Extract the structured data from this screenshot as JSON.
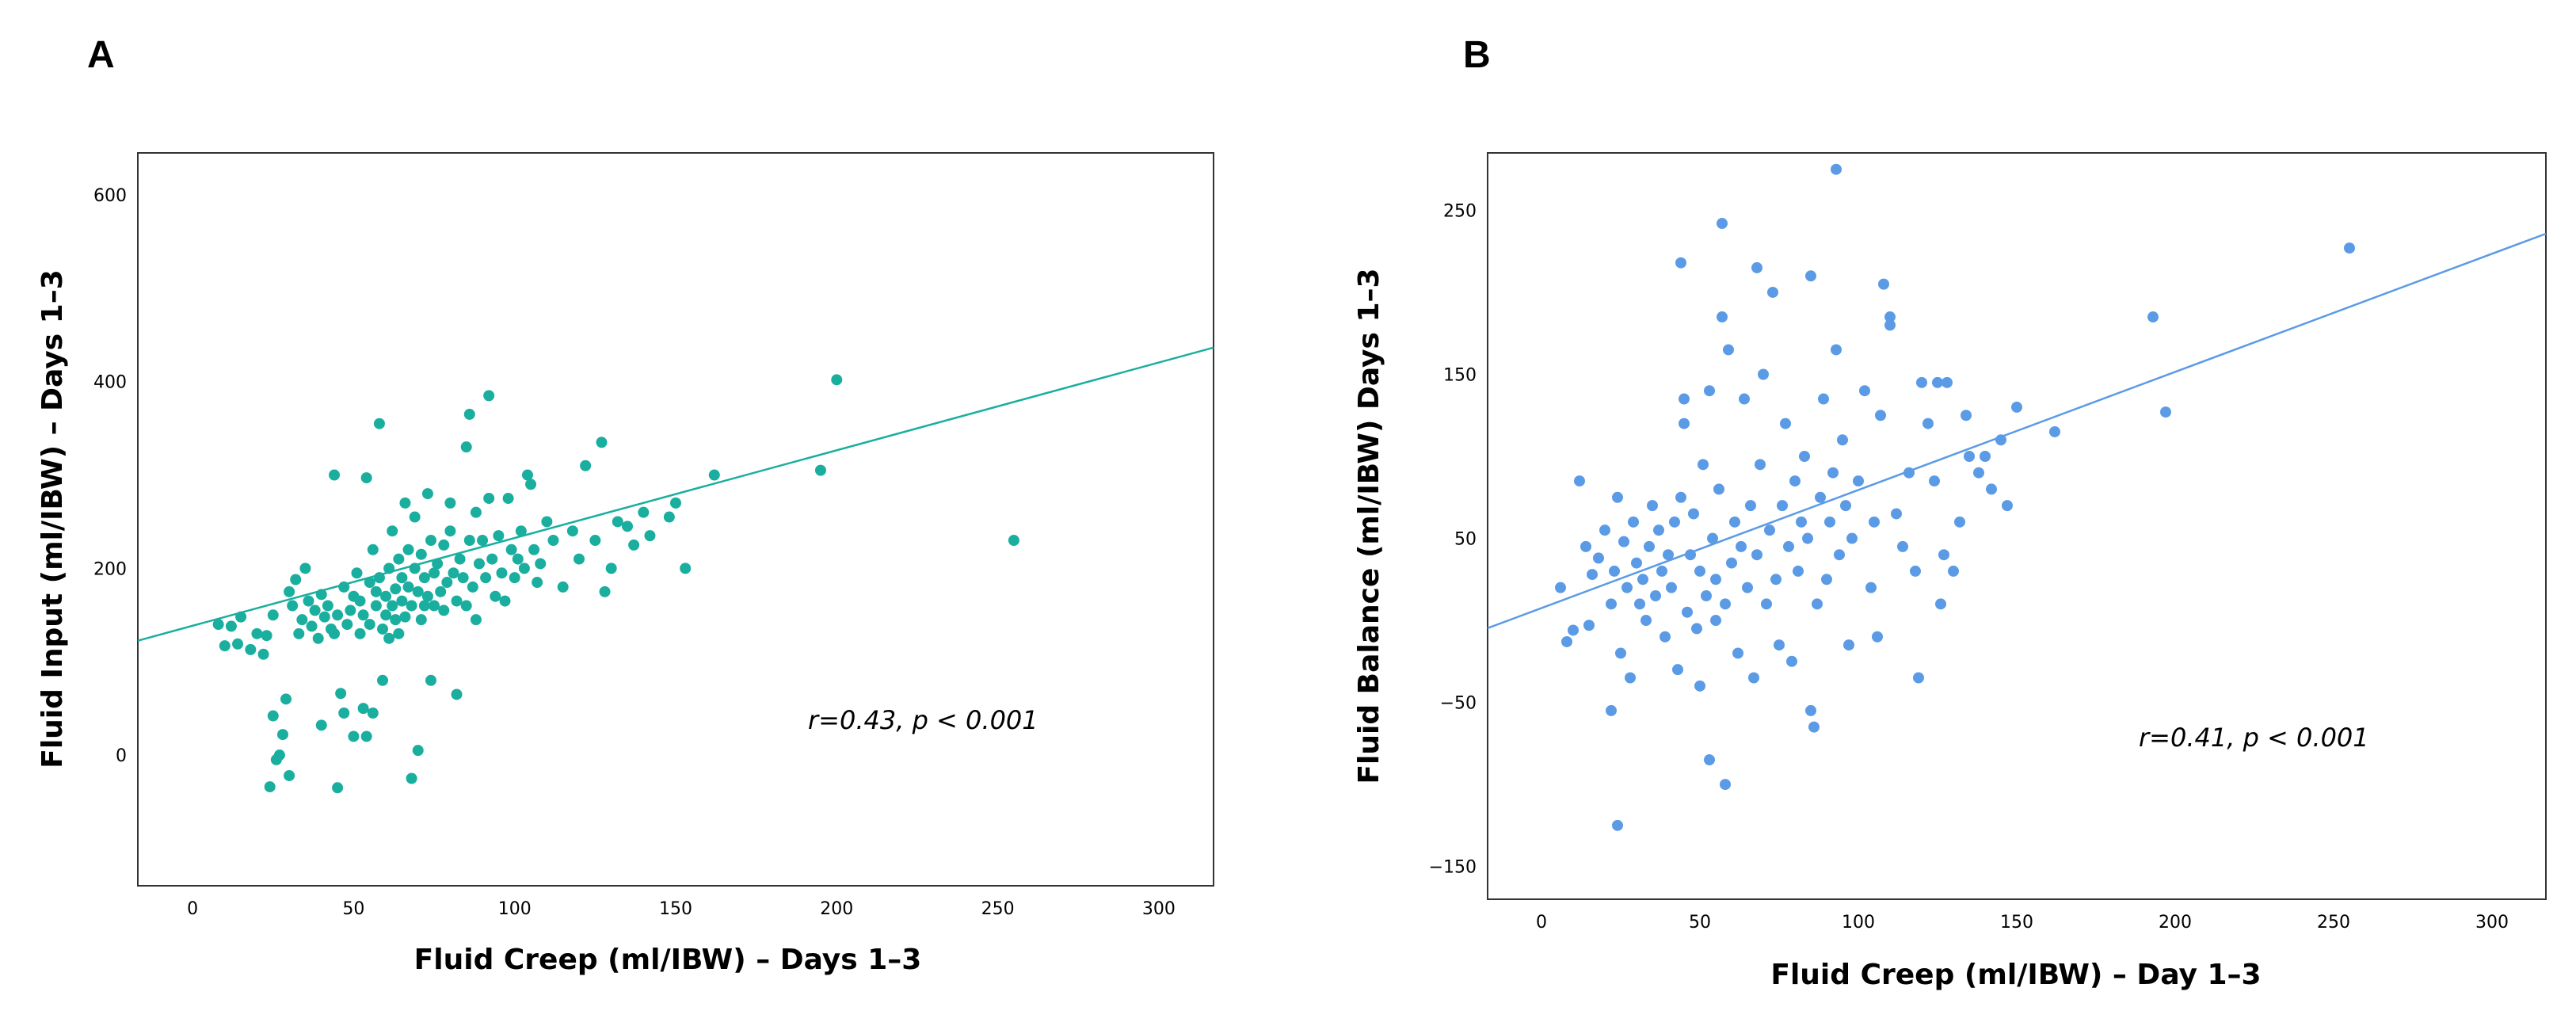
{
  "chart_data": [
    {
      "type": "scatter",
      "panel": "A",
      "xlabel": "Fluid Creep (ml/IBW) – Days 1–3",
      "ylabel": "Fluid Input (ml/IBW) – Days 1–3",
      "xlim": [
        -17,
        317
      ],
      "ylim": [
        -140,
        645
      ],
      "xticks": [
        "0",
        "50",
        "100",
        "150",
        "200",
        "250",
        "300"
      ],
      "yticks": [
        "0",
        "200",
        "400",
        "600"
      ],
      "xtick_values": [
        0,
        50,
        100,
        150,
        200,
        250,
        300
      ],
      "ytick_values": [
        0,
        200,
        400,
        600
      ],
      "annotation": "r=0.43, p < 0.001",
      "fit_line": {
        "intercept": 138.5,
        "slope": 0.94
      },
      "color": "#1aae9f",
      "points": [
        [
          8,
          140
        ],
        [
          10,
          117
        ],
        [
          12,
          138
        ],
        [
          14,
          119
        ],
        [
          15,
          148
        ],
        [
          18,
          113
        ],
        [
          20,
          130
        ],
        [
          22,
          108
        ],
        [
          23,
          128
        ],
        [
          25,
          150
        ],
        [
          24,
          -34
        ],
        [
          25,
          42
        ],
        [
          26,
          -5
        ],
        [
          27,
          0
        ],
        [
          28,
          22
        ],
        [
          29,
          60
        ],
        [
          30,
          -22
        ],
        [
          30,
          175
        ],
        [
          31,
          160
        ],
        [
          32,
          188
        ],
        [
          33,
          130
        ],
        [
          34,
          145
        ],
        [
          35,
          200
        ],
        [
          36,
          165
        ],
        [
          37,
          138
        ],
        [
          38,
          155
        ],
        [
          39,
          125
        ],
        [
          40,
          32
        ],
        [
          40,
          172
        ],
        [
          41,
          148
        ],
        [
          42,
          160
        ],
        [
          43,
          135
        ],
        [
          44,
          130
        ],
        [
          44,
          300
        ],
        [
          45,
          150
        ],
        [
          45,
          -35
        ],
        [
          46,
          66
        ],
        [
          47,
          180
        ],
        [
          47,
          45
        ],
        [
          48,
          140
        ],
        [
          49,
          155
        ],
        [
          50,
          170
        ],
        [
          50,
          20
        ],
        [
          51,
          195
        ],
        [
          52,
          165
        ],
        [
          52,
          130
        ],
        [
          53,
          150
        ],
        [
          53,
          50
        ],
        [
          54,
          297
        ],
        [
          54,
          20
        ],
        [
          55,
          185
        ],
        [
          55,
          140
        ],
        [
          56,
          220
        ],
        [
          56,
          45
        ],
        [
          57,
          160
        ],
        [
          57,
          175
        ],
        [
          58,
          190
        ],
        [
          58,
          355
        ],
        [
          59,
          135
        ],
        [
          59,
          80
        ],
        [
          60,
          170
        ],
        [
          60,
          150
        ],
        [
          61,
          200
        ],
        [
          61,
          125
        ],
        [
          62,
          160
        ],
        [
          62,
          240
        ],
        [
          63,
          178
        ],
        [
          63,
          145
        ],
        [
          64,
          210
        ],
        [
          64,
          130
        ],
        [
          65,
          190
        ],
        [
          65,
          165
        ],
        [
          66,
          270
        ],
        [
          66,
          148
        ],
        [
          67,
          220
        ],
        [
          67,
          180
        ],
        [
          68,
          160
        ],
        [
          68,
          -25
        ],
        [
          69,
          200
        ],
        [
          69,
          255
        ],
        [
          70,
          175
        ],
        [
          70,
          5
        ],
        [
          71,
          215
        ],
        [
          71,
          145
        ],
        [
          72,
          160
        ],
        [
          72,
          190
        ],
        [
          73,
          280
        ],
        [
          73,
          170
        ],
        [
          74,
          230
        ],
        [
          74,
          80
        ],
        [
          75,
          160
        ],
        [
          75,
          195
        ],
        [
          76,
          205
        ],
        [
          77,
          175
        ],
        [
          78,
          225
        ],
        [
          78,
          155
        ],
        [
          79,
          185
        ],
        [
          80,
          270
        ],
        [
          80,
          240
        ],
        [
          81,
          195
        ],
        [
          82,
          165
        ],
        [
          82,
          65
        ],
        [
          83,
          210
        ],
        [
          84,
          190
        ],
        [
          85,
          330
        ],
        [
          85,
          160
        ],
        [
          86,
          230
        ],
        [
          86,
          365
        ],
        [
          87,
          180
        ],
        [
          88,
          260
        ],
        [
          88,
          145
        ],
        [
          89,
          205
        ],
        [
          90,
          230
        ],
        [
          91,
          190
        ],
        [
          92,
          275
        ],
        [
          92,
          385
        ],
        [
          93,
          210
        ],
        [
          94,
          170
        ],
        [
          95,
          235
        ],
        [
          96,
          195
        ],
        [
          97,
          165
        ],
        [
          98,
          275
        ],
        [
          99,
          220
        ],
        [
          100,
          190
        ],
        [
          101,
          210
        ],
        [
          102,
          240
        ],
        [
          103,
          200
        ],
        [
          104,
          300
        ],
        [
          105,
          290
        ],
        [
          106,
          220
        ],
        [
          107,
          185
        ],
        [
          108,
          205
        ],
        [
          110,
          250
        ],
        [
          112,
          230
        ],
        [
          115,
          180
        ],
        [
          118,
          240
        ],
        [
          120,
          210
        ],
        [
          122,
          310
        ],
        [
          125,
          230
        ],
        [
          127,
          335
        ],
        [
          128,
          175
        ],
        [
          130,
          200
        ],
        [
          132,
          250
        ],
        [
          135,
          245
        ],
        [
          137,
          225
        ],
        [
          140,
          260
        ],
        [
          142,
          235
        ],
        [
          148,
          255
        ],
        [
          150,
          270
        ],
        [
          153,
          200
        ],
        [
          162,
          300
        ],
        [
          195,
          305
        ],
        [
          200,
          402
        ],
        [
          255,
          230
        ]
      ]
    },
    {
      "type": "scatter",
      "panel": "B",
      "xlabel": "Fluid Creep (ml/IBW) – Day 1–3",
      "ylabel": "Fluid Balance (ml/IBW) Days 1–3",
      "xlim": [
        -17,
        317
      ],
      "ylim": [
        -170,
        285
      ],
      "xticks": [
        "0",
        "50",
        "100",
        "150",
        "200",
        "250",
        "300"
      ],
      "yticks": [
        "−150",
        "−50",
        "50",
        "150",
        "250"
      ],
      "xtick_values": [
        0,
        50,
        100,
        150,
        200,
        250,
        300
      ],
      "ytick_values": [
        -150,
        -50,
        50,
        150,
        250
      ],
      "annotation": "r=0.41, p < 0.001",
      "fit_line": {
        "intercept": 7.5,
        "slope": 0.72
      },
      "color": "#5b9be6",
      "points": [
        [
          6,
          20
        ],
        [
          8,
          -13
        ],
        [
          10,
          -6
        ],
        [
          12,
          85
        ],
        [
          14,
          45
        ],
        [
          15,
          -3
        ],
        [
          16,
          28
        ],
        [
          18,
          38
        ],
        [
          20,
          55
        ],
        [
          22,
          -55
        ],
        [
          22,
          10
        ],
        [
          23,
          30
        ],
        [
          24,
          75
        ],
        [
          24,
          -125
        ],
        [
          25,
          -20
        ],
        [
          26,
          48
        ],
        [
          27,
          20
        ],
        [
          28,
          -35
        ],
        [
          29,
          60
        ],
        [
          30,
          35
        ],
        [
          31,
          10
        ],
        [
          32,
          25
        ],
        [
          33,
          0
        ],
        [
          34,
          45
        ],
        [
          35,
          70
        ],
        [
          36,
          15
        ],
        [
          37,
          55
        ],
        [
          38,
          30
        ],
        [
          39,
          -10
        ],
        [
          40,
          40
        ],
        [
          41,
          20
        ],
        [
          42,
          60
        ],
        [
          43,
          -30
        ],
        [
          44,
          75
        ],
        [
          44,
          218
        ],
        [
          45,
          120
        ],
        [
          45,
          135
        ],
        [
          46,
          5
        ],
        [
          47,
          40
        ],
        [
          48,
          65
        ],
        [
          49,
          -5
        ],
        [
          50,
          30
        ],
        [
          50,
          -40
        ],
        [
          51,
          95
        ],
        [
          52,
          15
        ],
        [
          53,
          140
        ],
        [
          53,
          -85
        ],
        [
          54,
          50
        ],
        [
          55,
          25
        ],
        [
          55,
          0
        ],
        [
          56,
          80
        ],
        [
          57,
          242
        ],
        [
          57,
          185
        ],
        [
          58,
          10
        ],
        [
          58,
          -100
        ],
        [
          59,
          165
        ],
        [
          60,
          35
        ],
        [
          61,
          60
        ],
        [
          62,
          -20
        ],
        [
          63,
          45
        ],
        [
          64,
          135
        ],
        [
          65,
          20
        ],
        [
          66,
          70
        ],
        [
          67,
          -35
        ],
        [
          68,
          40
        ],
        [
          68,
          215
        ],
        [
          69,
          95
        ],
        [
          70,
          150
        ],
        [
          71,
          10
        ],
        [
          72,
          55
        ],
        [
          73,
          200
        ],
        [
          74,
          25
        ],
        [
          75,
          -15
        ],
        [
          76,
          70
        ],
        [
          77,
          120
        ],
        [
          78,
          45
        ],
        [
          79,
          -25
        ],
        [
          80,
          85
        ],
        [
          81,
          30
        ],
        [
          82,
          60
        ],
        [
          83,
          100
        ],
        [
          84,
          50
        ],
        [
          85,
          210
        ],
        [
          85,
          -55
        ],
        [
          86,
          -65
        ],
        [
          87,
          10
        ],
        [
          88,
          75
        ],
        [
          89,
          135
        ],
        [
          90,
          25
        ],
        [
          91,
          60
        ],
        [
          92,
          90
        ],
        [
          93,
          165
        ],
        [
          93,
          275
        ],
        [
          94,
          40
        ],
        [
          95,
          110
        ],
        [
          96,
          70
        ],
        [
          97,
          -15
        ],
        [
          98,
          50
        ],
        [
          100,
          85
        ],
        [
          102,
          140
        ],
        [
          104,
          20
        ],
        [
          105,
          60
        ],
        [
          106,
          -10
        ],
        [
          107,
          125
        ],
        [
          108,
          205
        ],
        [
          110,
          180
        ],
        [
          110,
          185
        ],
        [
          112,
          65
        ],
        [
          114,
          45
        ],
        [
          116,
          90
        ],
        [
          118,
          30
        ],
        [
          119,
          -35
        ],
        [
          120,
          145
        ],
        [
          122,
          120
        ],
        [
          124,
          85
        ],
        [
          125,
          145
        ],
        [
          126,
          10
        ],
        [
          127,
          40
        ],
        [
          128,
          145
        ],
        [
          130,
          30
        ],
        [
          132,
          60
        ],
        [
          134,
          125
        ],
        [
          135,
          100
        ],
        [
          138,
          90
        ],
        [
          140,
          100
        ],
        [
          142,
          80
        ],
        [
          145,
          110
        ],
        [
          147,
          70
        ],
        [
          150,
          130
        ],
        [
          162,
          115
        ],
        [
          193,
          185
        ],
        [
          197,
          127
        ],
        [
          255,
          227
        ]
      ]
    }
  ]
}
